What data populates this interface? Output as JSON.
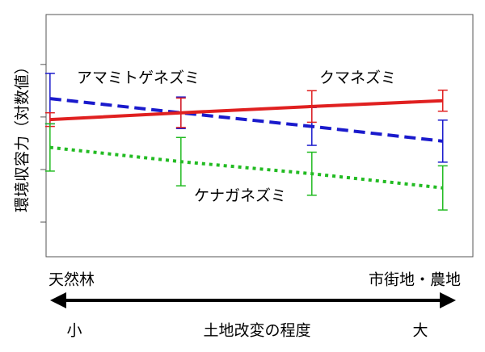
{
  "chart_data": {
    "type": "line",
    "ylabel": "環境収容力（対数値）",
    "x_start_label": "天然林",
    "x_end_label": "市街地・農地",
    "axis_title": "土地改変の程度",
    "axis_low": "小",
    "axis_high": "大",
    "x": [
      0,
      1,
      2,
      3
    ],
    "xlim": [
      -0.03,
      3.23
    ],
    "ylim": [
      0.34,
      4.95
    ],
    "yticks": [
      1,
      2,
      3,
      4
    ],
    "series": [
      {
        "name": "アマミトゲネズミ",
        "color": "#1a1acc",
        "dash": "dashed",
        "values": [
          3.35,
          3.08,
          2.82,
          2.54
        ],
        "errors": [
          0.48,
          0.3,
          0.36,
          0.4
        ]
      },
      {
        "name": "クマネズミ",
        "color": "#e02020",
        "dash": "solid",
        "values": [
          2.95,
          3.08,
          3.2,
          3.31
        ],
        "errors": [
          0.13,
          0.28,
          0.3,
          0.2
        ]
      },
      {
        "name": "ケナガネズミ",
        "color": "#22bb22",
        "dash": "dotted",
        "values": [
          2.42,
          2.15,
          1.92,
          1.65
        ],
        "errors": [
          0.45,
          0.46,
          0.41,
          0.42
        ]
      }
    ]
  }
}
